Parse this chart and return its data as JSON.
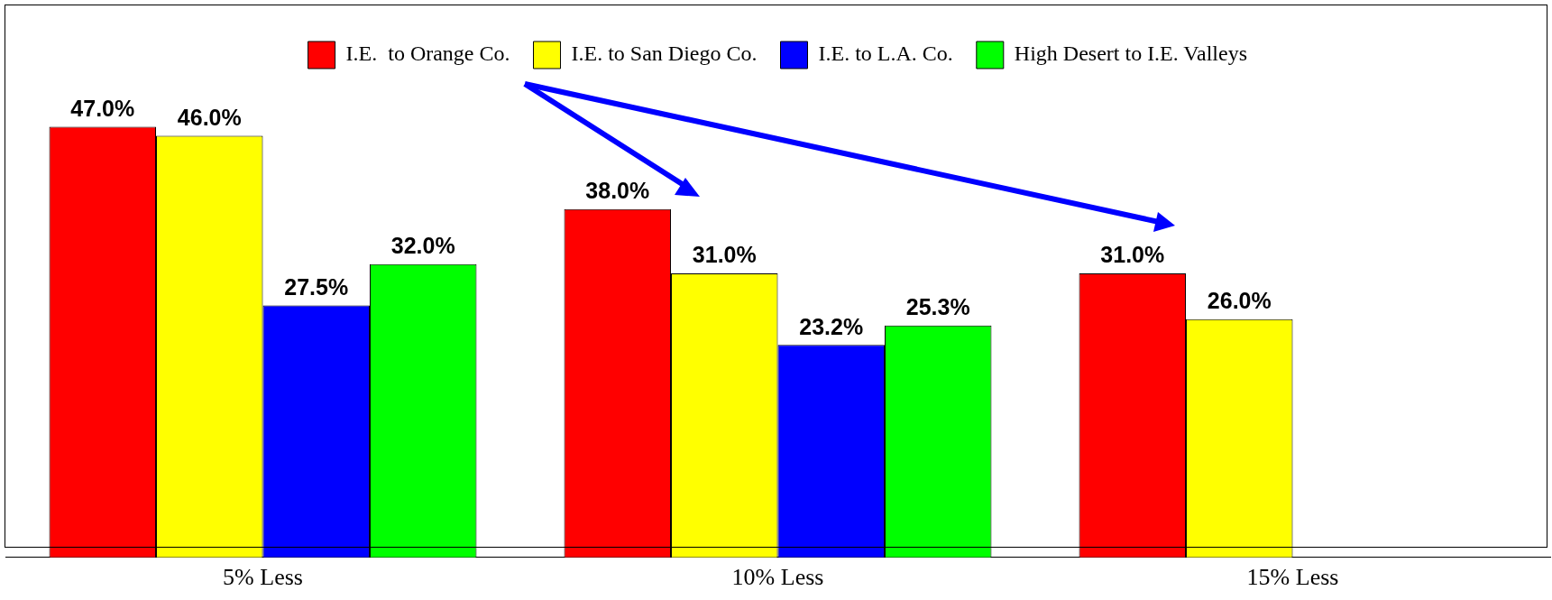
{
  "chart_data": {
    "type": "bar",
    "categories": [
      "5% Less",
      "10% Less",
      "15% Less"
    ],
    "series": [
      {
        "name": "I.E.  to Orange Co.",
        "color": "#ff0000",
        "values": [
          47,
          38,
          31
        ],
        "value_labels": [
          "47.0%",
          "38.0%",
          "31.0%"
        ]
      },
      {
        "name": "I.E. to San Diego Co.",
        "color": "#ffff00",
        "values": [
          46,
          31,
          26
        ],
        "value_labels": [
          "46.0%",
          "31.0%",
          "26.0%"
        ]
      },
      {
        "name": "I.E. to L.A. Co.",
        "color": "#0000ff",
        "values": [
          27.5,
          23.2,
          null
        ],
        "value_labels": [
          "27.5%",
          "23.2%",
          null
        ]
      },
      {
        "name": "High Desert to I.E. Valleys",
        "color": "#00ff00",
        "values": [
          32,
          25.3,
          null
        ],
        "value_labels": [
          "32.0%",
          "25.3%",
          null
        ]
      }
    ],
    "grid": false,
    "legend": "top"
  }
}
